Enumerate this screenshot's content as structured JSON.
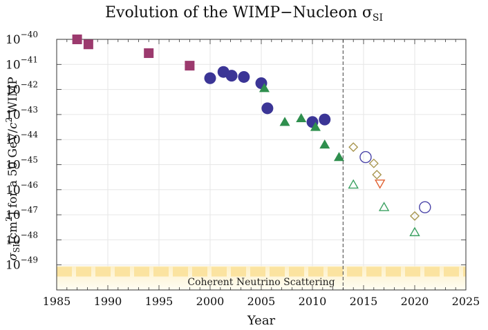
{
  "chart_data": {
    "type": "scatter",
    "title": "Evolution of the WIMP−Nucleon σ",
    "title_sub": "SI",
    "xlabel": "Year",
    "ylabel": "σSI[cm2] for a 50 GeV/c2 WIMP",
    "xlim": [
      1985,
      2025
    ],
    "ylim_exponent": [
      -50,
      -40
    ],
    "y_scale": "log",
    "grid": true,
    "x_ticks": [
      "1985",
      "1990",
      "1995",
      "2000",
      "2005",
      "2010",
      "2015",
      "2020",
      "2025"
    ],
    "y_ticks": [
      {
        "base": "10",
        "exp": "−40"
      },
      {
        "base": "10",
        "exp": "−41"
      },
      {
        "base": "10",
        "exp": "−42"
      },
      {
        "base": "10",
        "exp": "−43"
      },
      {
        "base": "10",
        "exp": "−44"
      },
      {
        "base": "10",
        "exp": "−45"
      },
      {
        "base": "10",
        "exp": "−46"
      },
      {
        "base": "10",
        "exp": "−47"
      },
      {
        "base": "10",
        "exp": "−48"
      },
      {
        "base": "10",
        "exp": "−49"
      }
    ],
    "neutrino_band": {
      "label": "Coherent Neutrino Scattering",
      "color": "#fbe3a0"
    },
    "divider_year": 2013,
    "series": [
      {
        "marker": "square",
        "filled": true,
        "color": "#9c3a6e",
        "points": [
          [
            1987,
            -40.0
          ],
          [
            1988.1,
            -40.2
          ],
          [
            1994,
            -40.55
          ],
          [
            1998,
            -41.05
          ]
        ]
      },
      {
        "marker": "circle",
        "filled": true,
        "color": "#3b3596",
        "points": [
          [
            2000,
            -41.55
          ],
          [
            2001.3,
            -41.3
          ],
          [
            2002.1,
            -41.45
          ],
          [
            2003.3,
            -41.5
          ],
          [
            2005,
            -41.75
          ],
          [
            2005.6,
            -42.75
          ],
          [
            2010,
            -43.3
          ],
          [
            2011.2,
            -43.2
          ]
        ]
      },
      {
        "marker": "triangle-up",
        "filled": true,
        "color": "#2f8f4e",
        "points": [
          [
            2005.3,
            -41.95
          ],
          [
            2007.3,
            -43.3
          ],
          [
            2008.9,
            -43.15
          ],
          [
            2010.3,
            -43.5
          ],
          [
            2011.2,
            -44.2
          ],
          [
            2012.6,
            -44.7
          ]
        ]
      },
      {
        "marker": "diamond",
        "filled": false,
        "color": "#a8964f",
        "points": [
          [
            2014,
            -44.3
          ],
          [
            2016,
            -44.95
          ],
          [
            2016.3,
            -45.4
          ],
          [
            2020,
            -47.05
          ]
        ]
      },
      {
        "marker": "circle",
        "filled": false,
        "color": "#4a44a8",
        "points": [
          [
            2015.2,
            -44.7
          ],
          [
            2021,
            -46.7
          ]
        ]
      },
      {
        "marker": "triangle-down",
        "filled": false,
        "color": "#e06030",
        "points": [
          [
            2016.6,
            -45.75
          ]
        ]
      },
      {
        "marker": "triangle-up",
        "filled": false,
        "color": "#3aa060",
        "points": [
          [
            2014,
            -45.8
          ],
          [
            2017,
            -46.7
          ],
          [
            2020,
            -47.7
          ]
        ]
      }
    ]
  }
}
